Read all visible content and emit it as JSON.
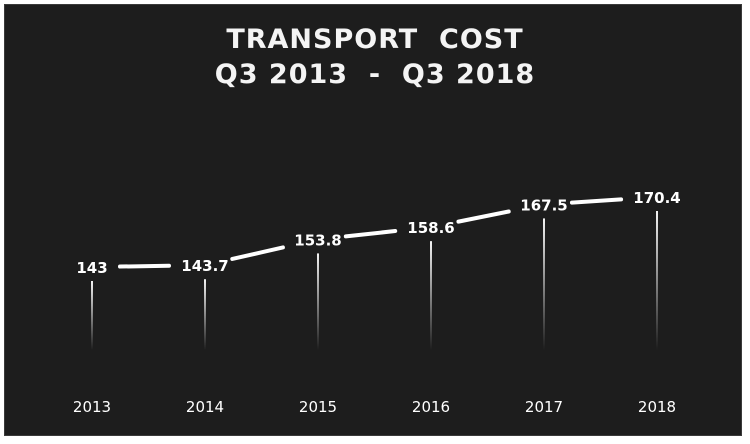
{
  "chart_data": {
    "type": "line",
    "title": "TRANSPORT  COST",
    "subtitle": "Q3 2013  -  Q3 2018",
    "categories": [
      "2013",
      "2014",
      "2015",
      "2016",
      "2017",
      "2018"
    ],
    "values": [
      143,
      143.7,
      153.8,
      158.6,
      167.5,
      170.4
    ],
    "data_labels": [
      "143",
      "143.7",
      "153.8",
      "158.6",
      "167.5",
      "170.4"
    ],
    "xlabel": "",
    "ylabel": "",
    "ylim": [
      143,
      170.4
    ],
    "grid": false,
    "colors": {
      "background": "#1d1d1d",
      "line": "#ffffff",
      "text": "#ffffff"
    }
  }
}
